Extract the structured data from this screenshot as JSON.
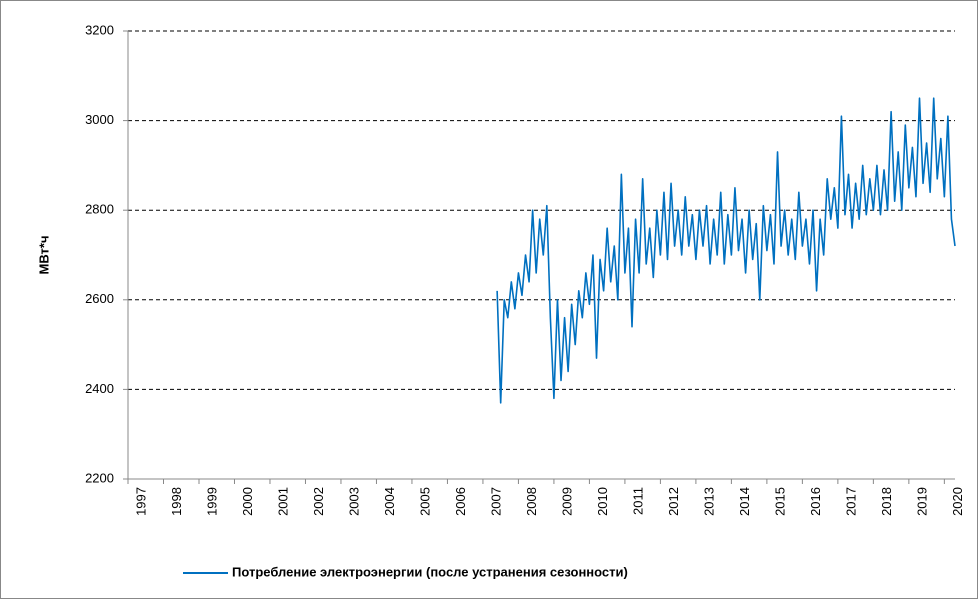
{
  "chart_data": {
    "type": "line",
    "y_label": "МВт*ч",
    "x": [
      2007.4,
      2007.5,
      2007.6,
      2007.7,
      2007.8,
      2007.9,
      2008.0,
      2008.1,
      2008.2,
      2008.3,
      2008.4,
      2008.5,
      2008.6,
      2008.7,
      2008.8,
      2008.9,
      2009.0,
      2009.1,
      2009.2,
      2009.3,
      2009.4,
      2009.5,
      2009.6,
      2009.7,
      2009.8,
      2009.9,
      2010.0,
      2010.1,
      2010.2,
      2010.3,
      2010.4,
      2010.5,
      2010.6,
      2010.7,
      2010.8,
      2010.9,
      2011.0,
      2011.1,
      2011.2,
      2011.3,
      2011.4,
      2011.5,
      2011.6,
      2011.7,
      2011.8,
      2011.9,
      2012.0,
      2012.1,
      2012.2,
      2012.3,
      2012.4,
      2012.5,
      2012.6,
      2012.7,
      2012.8,
      2012.9,
      2013.0,
      2013.1,
      2013.2,
      2013.3,
      2013.4,
      2013.5,
      2013.6,
      2013.7,
      2013.8,
      2013.9,
      2014.0,
      2014.1,
      2014.2,
      2014.3,
      2014.4,
      2014.5,
      2014.6,
      2014.7,
      2014.8,
      2014.9,
      2015.0,
      2015.1,
      2015.2,
      2015.3,
      2015.4,
      2015.5,
      2015.6,
      2015.7,
      2015.8,
      2015.9,
      2016.0,
      2016.1,
      2016.2,
      2016.3,
      2016.4,
      2016.5,
      2016.6,
      2016.7,
      2016.8,
      2016.9,
      2017.0,
      2017.1,
      2017.2,
      2017.3,
      2017.4,
      2017.5,
      2017.6,
      2017.7,
      2017.8,
      2017.9,
      2018.0,
      2018.1,
      2018.2,
      2018.3,
      2018.4,
      2018.5,
      2018.6,
      2018.7,
      2018.8,
      2018.9,
      2019.0,
      2019.1,
      2019.2,
      2019.3,
      2019.4,
      2019.5,
      2019.6,
      2019.7,
      2019.8,
      2019.9,
      2020.0,
      2020.1,
      2020.2,
      2020.3
    ],
    "series": [
      {
        "name": "Потребление электроэнергии (после устранения сезонности)",
        "color": "#0070c0",
        "values": [
          2620,
          2370,
          2600,
          2560,
          2640,
          2580,
          2660,
          2610,
          2700,
          2640,
          2800,
          2660,
          2780,
          2700,
          2810,
          2560,
          2380,
          2600,
          2420,
          2560,
          2440,
          2590,
          2500,
          2620,
          2560,
          2660,
          2590,
          2700,
          2470,
          2690,
          2620,
          2760,
          2640,
          2720,
          2600,
          2880,
          2660,
          2760,
          2540,
          2780,
          2660,
          2870,
          2680,
          2760,
          2650,
          2800,
          2700,
          2840,
          2690,
          2860,
          2720,
          2800,
          2700,
          2830,
          2720,
          2790,
          2690,
          2800,
          2720,
          2810,
          2680,
          2780,
          2700,
          2840,
          2680,
          2790,
          2700,
          2850,
          2710,
          2780,
          2660,
          2800,
          2690,
          2770,
          2600,
          2810,
          2710,
          2790,
          2680,
          2930,
          2720,
          2800,
          2700,
          2780,
          2690,
          2840,
          2720,
          2780,
          2680,
          2800,
          2620,
          2780,
          2700,
          2870,
          2780,
          2850,
          2760,
          3010,
          2790,
          2880,
          2760,
          2860,
          2780,
          2900,
          2790,
          2870,
          2800,
          2900,
          2790,
          2890,
          2800,
          3020,
          2820,
          2930,
          2800,
          2990,
          2850,
          2940,
          2830,
          3050,
          2860,
          2950,
          2840,
          3050,
          2870,
          2960,
          2830,
          3010,
          2780,
          2720
        ]
      }
    ],
    "xlim": [
      1997,
      2020.3
    ],
    "xticks": [
      1997,
      1998,
      1999,
      2000,
      2001,
      2002,
      2003,
      2004,
      2005,
      2006,
      2007,
      2008,
      2009,
      2010,
      2011,
      2012,
      2013,
      2014,
      2015,
      2016,
      2017,
      2018,
      2019,
      2020
    ],
    "ylim": [
      2200,
      3200
    ],
    "yticks": [
      2200,
      2400,
      2600,
      2800,
      3000,
      3200
    ],
    "grid": true,
    "legend": "bottom"
  }
}
